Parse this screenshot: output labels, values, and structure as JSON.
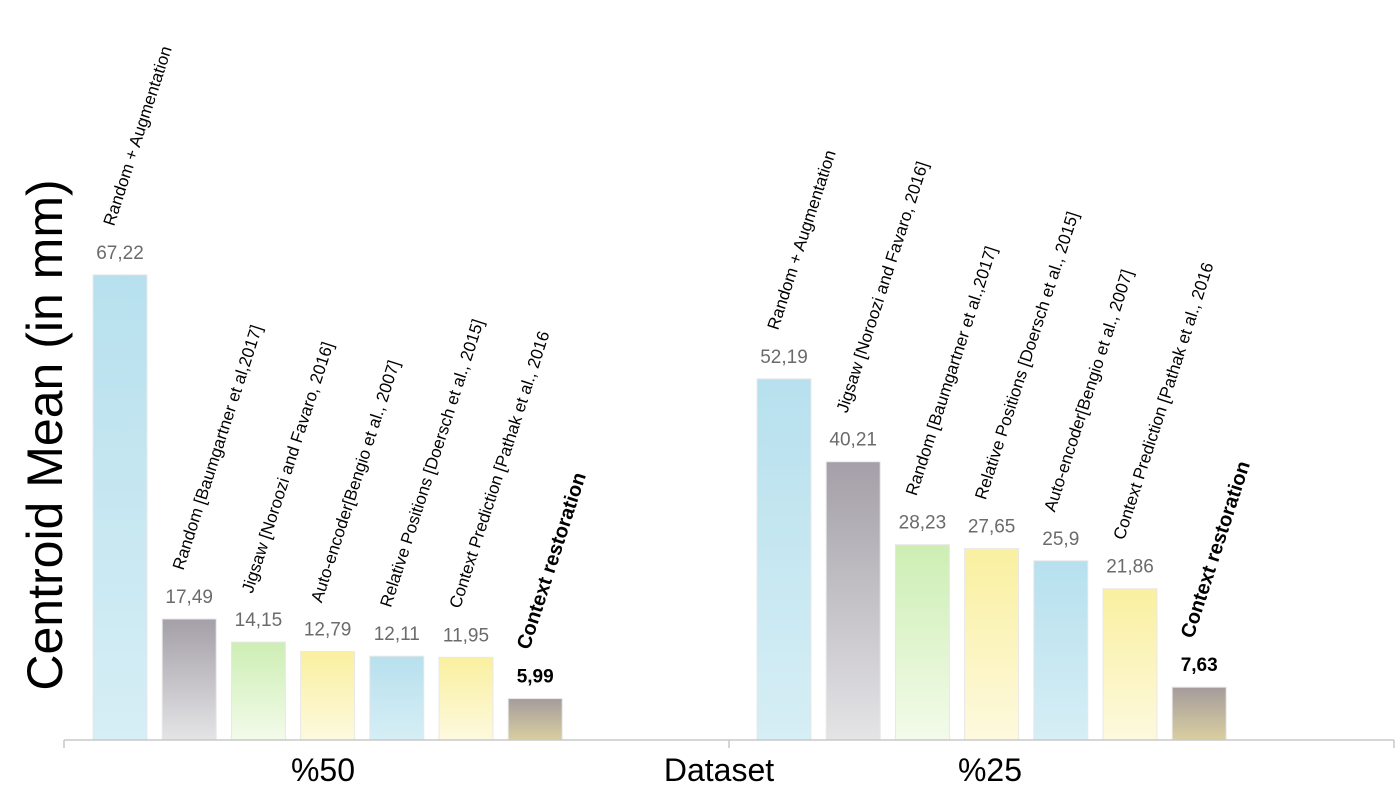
{
  "chart_data": {
    "type": "bar",
    "ylabel": "Centroid Mean (in mm)",
    "xlabel": "Dataset",
    "ylim": [
      0,
      70
    ],
    "grid": false,
    "groups": [
      {
        "label": "%50",
        "bars": [
          {
            "method": "Random + Augmentation",
            "value": 67.22,
            "value_label": "67,22",
            "fill": "light-blue"
          },
          {
            "method": "Random [Baumgartner et al,2017]",
            "value": 17.49,
            "value_label": "17,49",
            "fill": "gray"
          },
          {
            "method": "Jigsaw [Noroozi and Favaro, 2016]",
            "value": 14.15,
            "value_label": "14,15",
            "fill": "light-green"
          },
          {
            "method": "Auto-encoder[Bengio et al., 2007]",
            "value": 12.79,
            "value_label": "12,79",
            "fill": "light-yellow"
          },
          {
            "method": "Relative Positions [Doersch et al., 2015]",
            "value": 12.11,
            "value_label": "12,11",
            "fill": "light-blue"
          },
          {
            "method": "Context Prediction [Pathak et al., 2016",
            "value": 11.95,
            "value_label": "11,95",
            "fill": "light-yellow"
          },
          {
            "method": "Context restoration",
            "value": 5.99,
            "value_label": "5,99",
            "fill": "dark-gray",
            "highlight": true
          }
        ]
      },
      {
        "label": "%25",
        "bars": [
          {
            "method": "Random + Augmentation",
            "value": 52.19,
            "value_label": "52,19",
            "fill": "light-blue"
          },
          {
            "method": "Jigsaw [Noroozi and Favaro, 2016]",
            "value": 40.21,
            "value_label": "40,21",
            "fill": "gray"
          },
          {
            "method": "Random [Baumgartner et al.,2017]",
            "value": 28.23,
            "value_label": "28,23",
            "fill": "light-green"
          },
          {
            "method": "Relative Positions [Doersch et al., 2015]",
            "value": 27.65,
            "value_label": "27,65",
            "fill": "light-yellow"
          },
          {
            "method": "Auto-encoder[Bengio et al., 2007]",
            "value": 25.9,
            "value_label": "25,9",
            "fill": "light-blue"
          },
          {
            "method": "Context Prediction [Pathak et al., 2016",
            "value": 21.86,
            "value_label": "21,86",
            "fill": "light-yellow"
          },
          {
            "method": "Context restoration",
            "value": 7.63,
            "value_label": "7,63",
            "fill": "dark-gray",
            "highlight": true
          }
        ]
      }
    ]
  },
  "colors": {
    "axis": "#c8c8c8",
    "light-blue": [
      "#b7e0ee",
      "#d6eef5"
    ],
    "gray": [
      "#a49fa8",
      "#e4e4e6"
    ],
    "light-green": [
      "#cdeeb4",
      "#f3fbea"
    ],
    "light-yellow": [
      "#faf0a0",
      "#fdf9de"
    ],
    "dark-gray": [
      "#a59c9c",
      "#d9ce9f"
    ]
  }
}
